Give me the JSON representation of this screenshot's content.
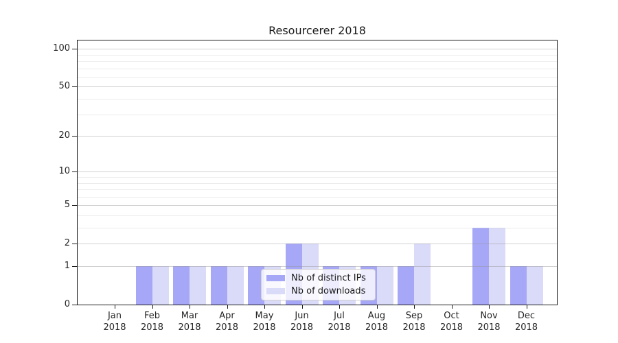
{
  "chart_data": {
    "type": "bar",
    "title": "Resourcerer 2018",
    "x_categories": [
      "Jan",
      "Feb",
      "Mar",
      "Apr",
      "May",
      "Jun",
      "Jul",
      "Aug",
      "Sep",
      "Oct",
      "Nov",
      "Dec"
    ],
    "x_year_label": "2018",
    "series": [
      {
        "name": "Nb of distinct IPs",
        "color": "#a7a7f7",
        "values": [
          0,
          1,
          1,
          1,
          1,
          2,
          1,
          1,
          1,
          0,
          3,
          1
        ]
      },
      {
        "name": "Nb of downloads",
        "color": "#dadaf9",
        "values": [
          0,
          1,
          1,
          1,
          1,
          2,
          1,
          1,
          2,
          0,
          3,
          1
        ]
      }
    ],
    "y_axis": {
      "scale": "log1p",
      "major_ticks": [
        0,
        1,
        2,
        5,
        10,
        20,
        50,
        100
      ],
      "minor_gridlines": [
        3,
        4,
        6,
        7,
        8,
        9,
        30,
        40,
        60,
        70,
        80,
        90
      ]
    },
    "legend": {
      "position": "lower center",
      "entries": [
        "Nb of distinct IPs",
        "Nb of downloads"
      ]
    },
    "grid": true
  },
  "colors": {
    "bar_distinct_ips": "#a7a7f7",
    "bar_downloads": "#dadaf9",
    "axis": "#1a1a1a",
    "tick_text": "#262626"
  }
}
